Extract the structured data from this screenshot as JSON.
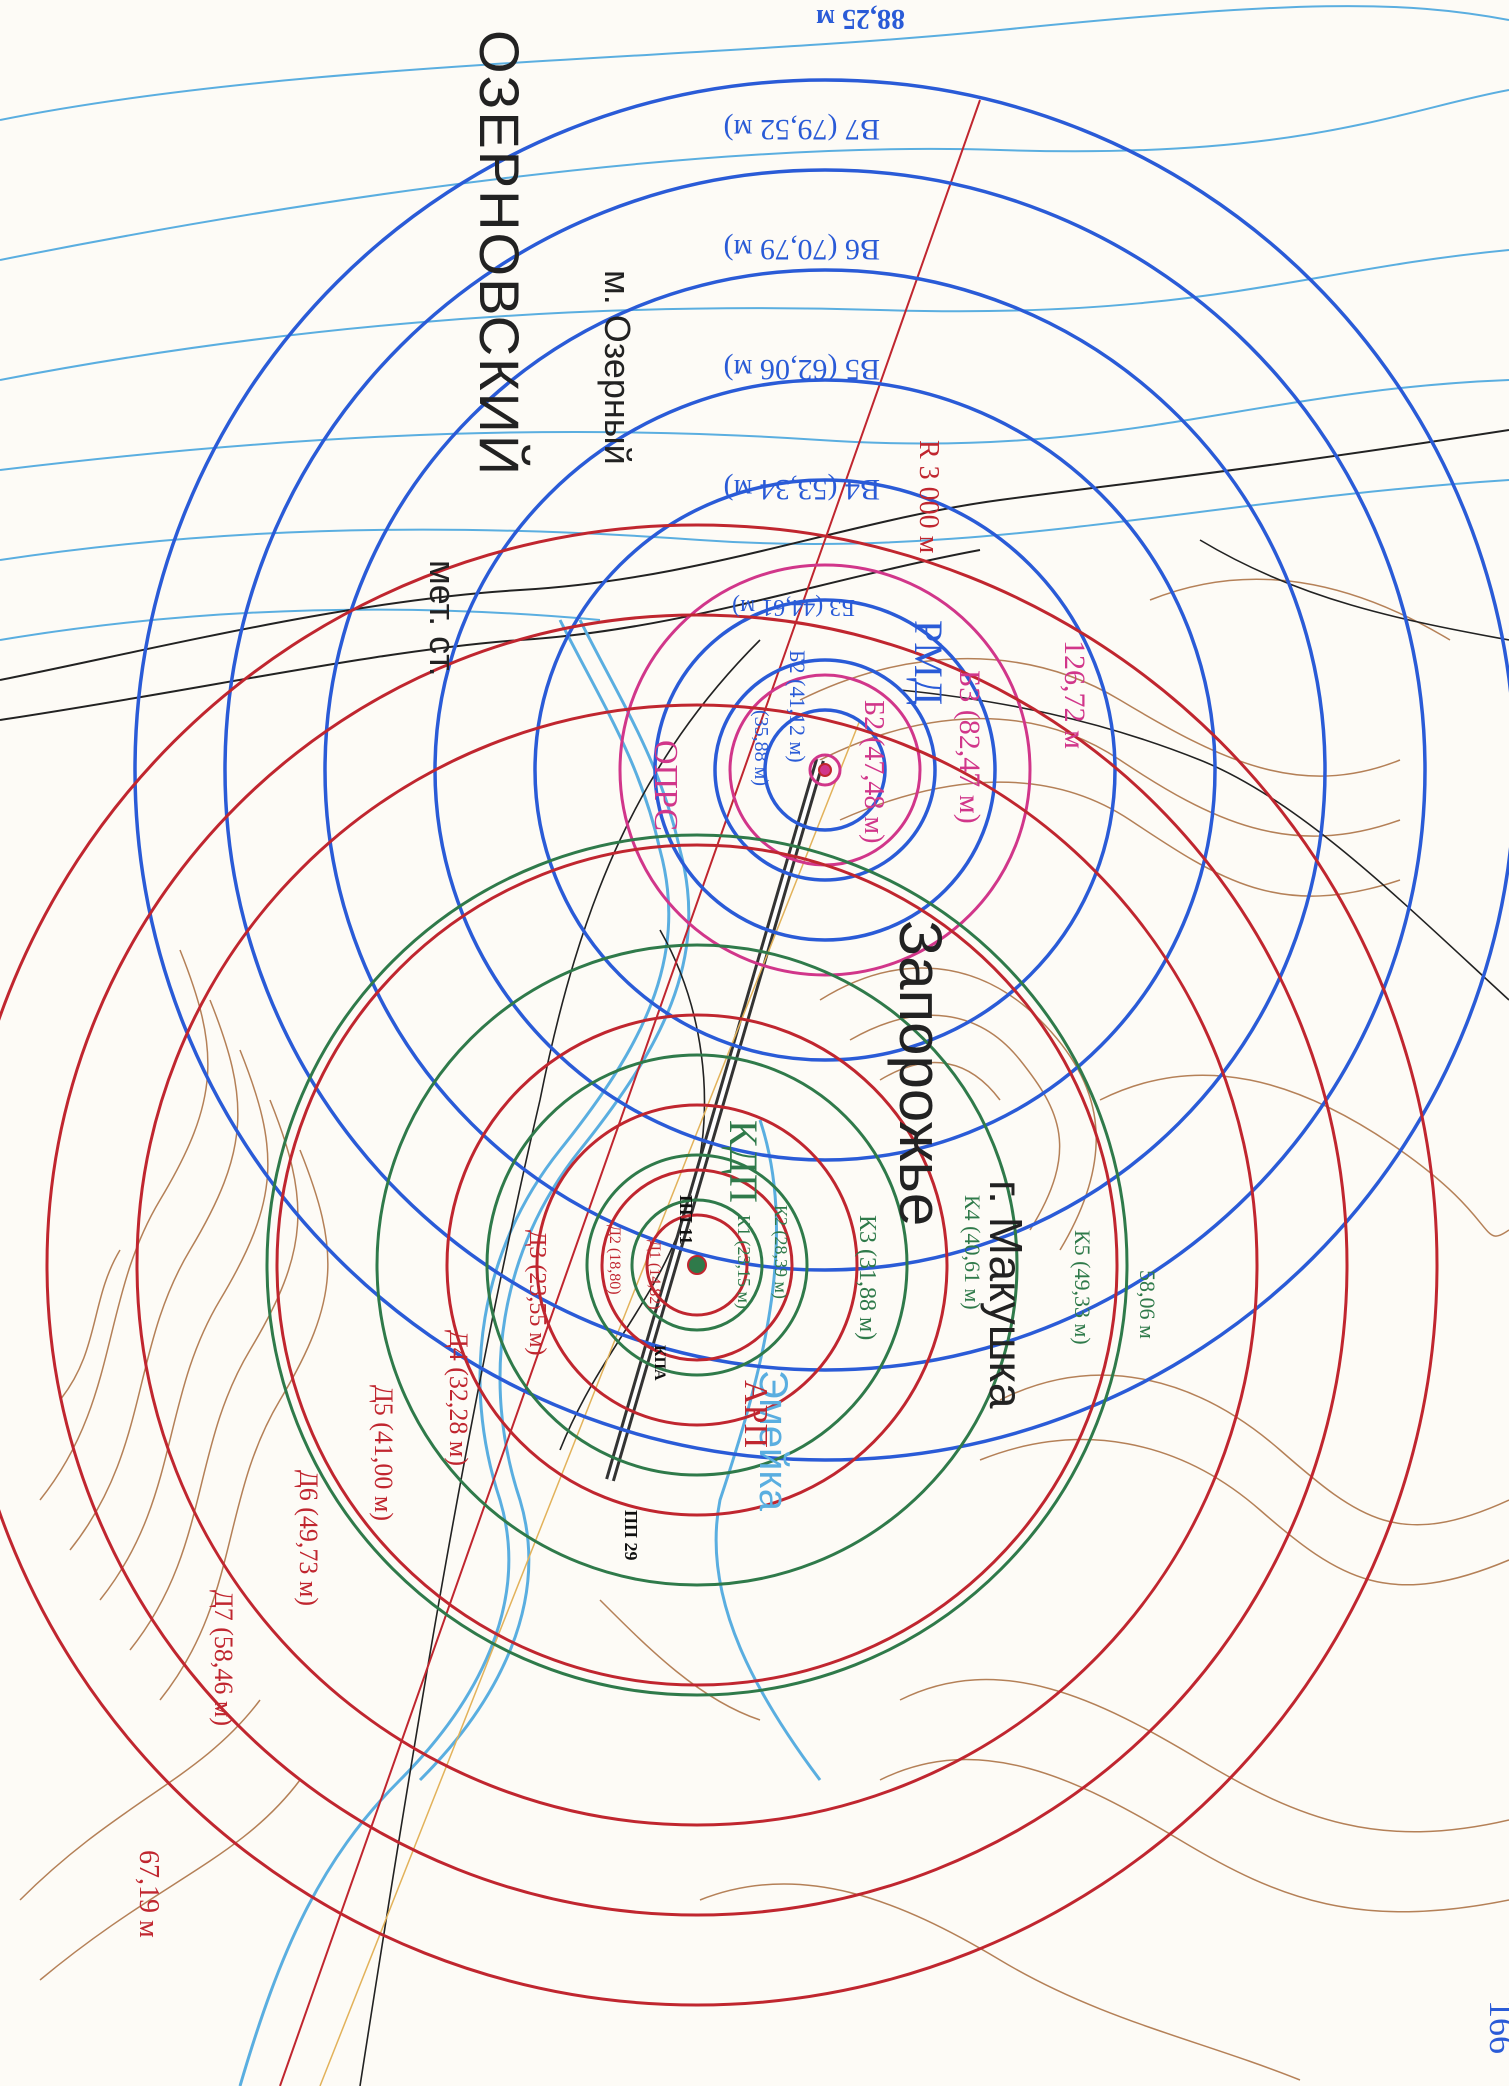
{
  "map": {
    "colors": {
      "blue": "#2a5bd7",
      "red": "#c0262f",
      "green": "#2f7a4a",
      "magenta": "#d1368a",
      "contour": "#a86b3c",
      "water": "#5aaee0",
      "road": "#222222",
      "background": "#fdfbf6"
    },
    "labels": {
      "region": "ОЗЕРНОВСКИЙ",
      "region_sub": "мет. ст.",
      "cape": "м. Озерный",
      "village": "Запорожье",
      "hill": "г. Макушка",
      "river": "Эмейка",
      "rmd": "РМД",
      "obrs": "ОПРС",
      "kdp": "КДП",
      "arp": "АРП",
      "radius": "R 3 000 м",
      "map_number": "166",
      "pp11": "ПП 11",
      "pp29": "ПП 29",
      "kpa": "КПА"
    },
    "blue_rings": [
      {
        "label": "88,25 м"
      },
      {
        "label": "В7 (79,52 м)"
      },
      {
        "label": "В6 (70,79 м)"
      },
      {
        "label": "В5 (62,06 м)"
      },
      {
        "label": "В4 (53,34 м)"
      },
      {
        "label": "Б3 (44,61 м)"
      },
      {
        "label": "Б2 (41,12 м)"
      },
      {
        "label": "(35,88 м)"
      }
    ],
    "magenta_rings": [
      {
        "label": "126,72 м"
      },
      {
        "label": "Б3 (82,47 м)"
      },
      {
        "label": "Б2 (47,48 м)"
      }
    ],
    "green_rings": [
      {
        "label": "58,06 м"
      },
      {
        "label": "К5 (49,33 м)"
      },
      {
        "label": "К4 (40,61 м)"
      },
      {
        "label": "К3 (31,88 м)"
      },
      {
        "label": "К2 (28,39 м)"
      },
      {
        "label": "К1 (23,15 м)"
      }
    ],
    "red_rings": [
      {
        "label": "67,19 м"
      },
      {
        "label": "Д7 (58,46 м)"
      },
      {
        "label": "Д6 (49,73 м)"
      },
      {
        "label": "Д5 (41,00 м)"
      },
      {
        "label": "Д4 (32,28 м)"
      },
      {
        "label": "Д3 (23,55 м)"
      },
      {
        "label": "Д2 (18,80)"
      },
      {
        "label": "Д1 (14,82)"
      }
    ]
  }
}
